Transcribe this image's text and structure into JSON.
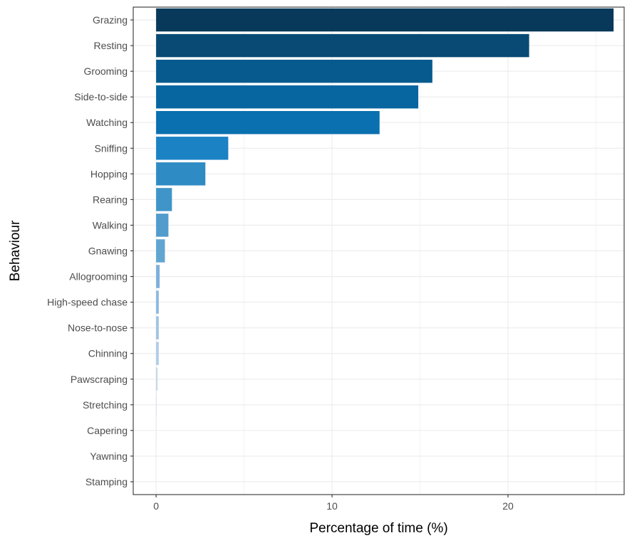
{
  "chart_data": {
    "type": "bar",
    "orientation": "horizontal",
    "xlabel": "Percentage of time (%)",
    "ylabel": "Behaviour",
    "xlim": [
      -1.3,
      26.6
    ],
    "xticks": [
      0,
      10,
      20
    ],
    "grid": true,
    "legend": "none",
    "categories": [
      "Grazing",
      "Resting",
      "Grooming",
      "Side-to-side",
      "Watching",
      "Sniffing",
      "Hopping",
      "Rearing",
      "Walking",
      "Gnawing",
      "Allogrooming",
      "High-speed chase",
      "Nose-to-nose",
      "Chinning",
      "Pawscraping",
      "Stretching",
      "Capering",
      "Yawning",
      "Stamping"
    ],
    "values": [
      26.0,
      21.2,
      15.7,
      14.9,
      12.7,
      4.1,
      2.8,
      0.9,
      0.7,
      0.5,
      0.2,
      0.15,
      0.15,
      0.15,
      0.08,
      0.03,
      0.02,
      0.01,
      0.01
    ],
    "colors": [
      "#08395a",
      "#084a74",
      "#075a8e",
      "#0766a0",
      "#0a70b0",
      "#1b82c4",
      "#2f8bc3",
      "#3f95c8",
      "#519ccd",
      "#62a5d1",
      "#7eb0da",
      "#8cb9de",
      "#9fc3e3",
      "#b0cde8",
      "#c4d7ed",
      "#d2e0f1",
      "#dce7f4",
      "#e5edf7",
      "#ecf2f9"
    ]
  }
}
